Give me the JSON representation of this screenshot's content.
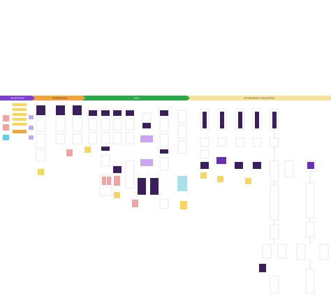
{
  "phases": [
    {
      "label": "ADVERTISING"
    },
    {
      "label": "RE-BRANDING"
    },
    {
      "label": "WALK"
    },
    {
      "label": "ACTIVE WALKS / COLLECTION"
    }
  ]
}
